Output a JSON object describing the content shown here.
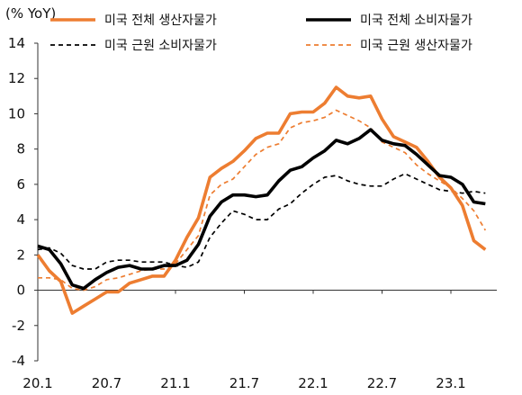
{
  "chart_data": {
    "type": "line",
    "unit_label": "(% YoY)",
    "ylim": [
      -4,
      14
    ],
    "yticks": [
      -4,
      -2,
      0,
      2,
      4,
      6,
      8,
      10,
      12,
      14
    ],
    "xlim": [
      0,
      40
    ],
    "xticks": [
      {
        "x": 0,
        "label": "20.1"
      },
      {
        "x": 6,
        "label": "20.7"
      },
      {
        "x": 12,
        "label": "21.1"
      },
      {
        "x": 18,
        "label": "21.7"
      },
      {
        "x": 24,
        "label": "22.1"
      },
      {
        "x": 30,
        "label": "22.7"
      },
      {
        "x": 36,
        "label": "23.1"
      }
    ],
    "grid": false,
    "legend_position": "top",
    "series": [
      {
        "name": "미국 전체 생산자물가",
        "color": "#ED7D31",
        "style": "solid-thick",
        "x": [
          0,
          1,
          2,
          3,
          4,
          5,
          6,
          7,
          8,
          9,
          10,
          11,
          12,
          13,
          14,
          15,
          16,
          17,
          18,
          19,
          20,
          21,
          22,
          23,
          24,
          25,
          26,
          27,
          28,
          29,
          30,
          31,
          32,
          33,
          34,
          35,
          36,
          37,
          38,
          39,
          40
        ],
        "y": [
          2.0,
          1.1,
          0.5,
          -1.3,
          -0.9,
          -0.5,
          -0.1,
          -0.1,
          0.4,
          0.6,
          0.8,
          0.8,
          1.7,
          3.0,
          4.1,
          6.4,
          6.9,
          7.3,
          7.9,
          8.6,
          8.9,
          8.9,
          10.0,
          10.1,
          10.1,
          10.6,
          11.5,
          11.0,
          10.9,
          11.0,
          9.7,
          8.7,
          8.4,
          8.1,
          7.3,
          6.4,
          5.8,
          4.8,
          2.8,
          2.3,
          null
        ]
      },
      {
        "name": "미국 전체 소비자물가",
        "color": "#000000",
        "style": "solid-thick",
        "x": [
          0,
          1,
          2,
          3,
          4,
          5,
          6,
          7,
          8,
          9,
          10,
          11,
          12,
          13,
          14,
          15,
          16,
          17,
          18,
          19,
          20,
          21,
          22,
          23,
          24,
          25,
          26,
          27,
          28,
          29,
          30,
          31,
          32,
          33,
          34,
          35,
          36,
          37,
          38,
          39,
          40
        ],
        "y": [
          2.5,
          2.3,
          1.5,
          0.3,
          0.1,
          0.6,
          1.0,
          1.3,
          1.4,
          1.2,
          1.2,
          1.4,
          1.4,
          1.7,
          2.6,
          4.2,
          5.0,
          5.4,
          5.4,
          5.3,
          5.4,
          6.2,
          6.8,
          7.0,
          7.5,
          7.9,
          8.5,
          8.3,
          8.6,
          9.1,
          8.5,
          8.3,
          8.2,
          7.7,
          7.1,
          6.5,
          6.4,
          6.0,
          5.0,
          4.9,
          null
        ]
      },
      {
        "name": "미국 근원 소비자물가",
        "color": "#000000",
        "style": "dashed",
        "x": [
          0,
          1,
          2,
          3,
          4,
          5,
          6,
          7,
          8,
          9,
          10,
          11,
          12,
          13,
          14,
          15,
          16,
          17,
          18,
          19,
          20,
          21,
          22,
          23,
          24,
          25,
          26,
          27,
          28,
          29,
          30,
          31,
          32,
          33,
          34,
          35,
          36,
          37,
          38,
          39,
          40
        ],
        "y": [
          2.3,
          2.4,
          2.1,
          1.4,
          1.2,
          1.2,
          1.6,
          1.7,
          1.7,
          1.6,
          1.6,
          1.6,
          1.4,
          1.3,
          1.6,
          3.0,
          3.8,
          4.5,
          4.3,
          4.0,
          4.0,
          4.6,
          4.9,
          5.5,
          6.0,
          6.4,
          6.5,
          6.2,
          6.0,
          5.9,
          5.9,
          6.3,
          6.6,
          6.3,
          6.0,
          5.7,
          5.6,
          5.5,
          5.6,
          5.5,
          null
        ]
      },
      {
        "name": "미국 근원 생산자물가",
        "color": "#ED7D31",
        "style": "dashed",
        "x": [
          0,
          1,
          2,
          3,
          4,
          5,
          6,
          7,
          8,
          9,
          10,
          11,
          12,
          13,
          14,
          15,
          16,
          17,
          18,
          19,
          20,
          21,
          22,
          23,
          24,
          25,
          26,
          27,
          28,
          29,
          30,
          31,
          32,
          33,
          34,
          35,
          36,
          37,
          38,
          39,
          40
        ],
        "y": [
          0.7,
          0.7,
          0.6,
          0.1,
          0.0,
          0.2,
          0.6,
          0.7,
          0.9,
          1.1,
          1.2,
          1.2,
          1.5,
          2.3,
          3.1,
          5.4,
          6.0,
          6.3,
          7.0,
          7.7,
          8.1,
          8.3,
          9.2,
          9.5,
          9.6,
          9.8,
          10.2,
          9.9,
          9.6,
          9.2,
          8.4,
          8.1,
          7.8,
          7.1,
          6.6,
          6.2,
          5.8,
          5.2,
          4.5,
          3.4,
          null
        ]
      }
    ]
  }
}
